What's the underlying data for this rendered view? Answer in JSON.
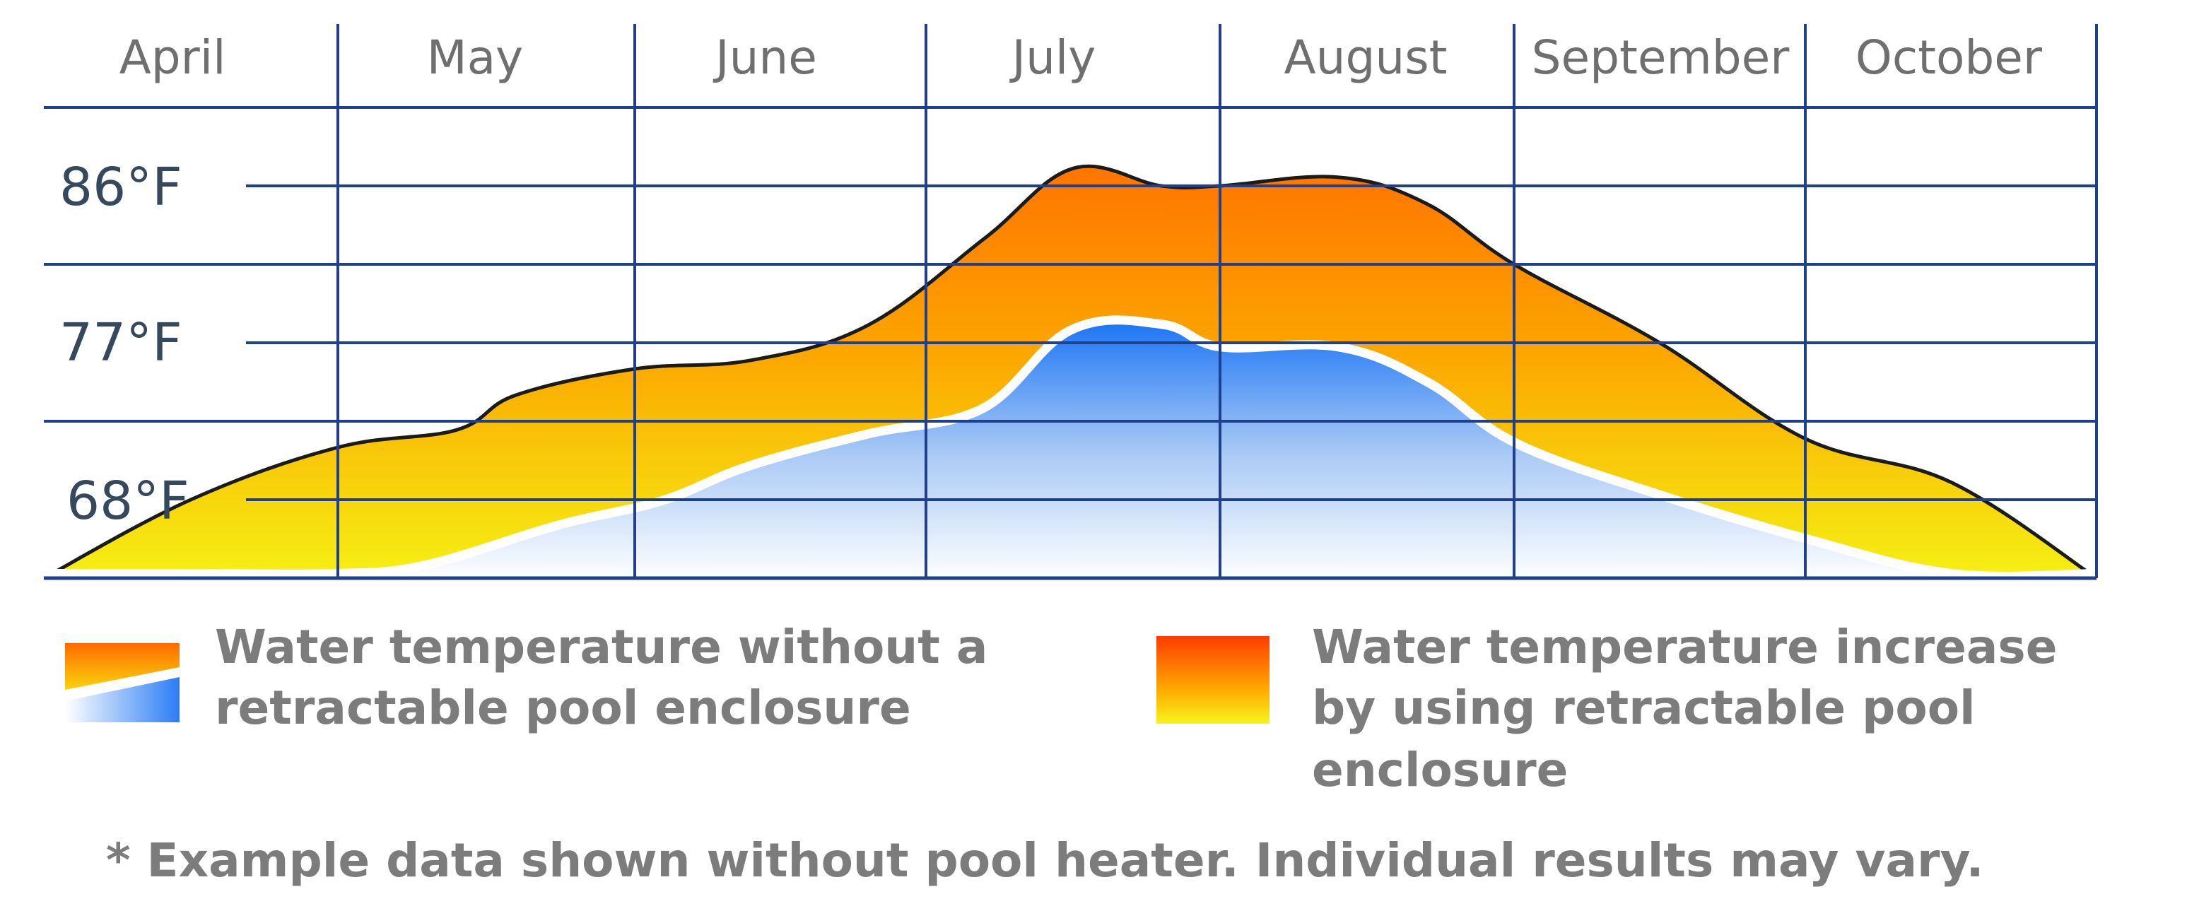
{
  "chart_data": {
    "type": "area",
    "x_categories": [
      "April",
      "May",
      "June",
      "July",
      "August",
      "September",
      "October"
    ],
    "y_ticks": [
      {
        "label": "86°F",
        "value": 86
      },
      {
        "label": "77°F",
        "value": 77
      },
      {
        "label": "68°F",
        "value": 68
      }
    ],
    "y_unit": "°F",
    "ylim": [
      63.5,
      90.5
    ],
    "grid": true,
    "series": [
      {
        "name": "Water temperature increase by using retractable pool enclosure",
        "x": [
          0.0,
          0.5,
          1.0,
          1.4,
          1.6,
          2.0,
          2.4,
          2.8,
          3.2,
          3.5,
          3.8,
          4.0,
          4.4,
          4.7,
          5.0,
          5.5,
          6.0,
          6.5,
          7.0
        ],
        "y": [
          63.5,
          68.0,
          71.0,
          72.0,
          74.0,
          75.5,
          76.0,
          78.0,
          83.0,
          87.0,
          86.0,
          86.0,
          86.5,
          85.0,
          81.5,
          77.0,
          71.5,
          69.0,
          63.5
        ],
        "colors": [
          "#f5f014",
          "#fca600",
          "#ff7400"
        ]
      },
      {
        "name": "Water temperature without a retractable pool enclosure",
        "x": [
          0.0,
          0.5,
          1.0,
          1.3,
          1.75,
          2.1,
          2.4,
          2.8,
          3.2,
          3.5,
          3.8,
          4.0,
          4.4,
          4.7,
          5.0,
          5.5,
          6.0,
          6.5,
          7.0
        ],
        "y": [
          63.5,
          63.5,
          63.5,
          64.0,
          66.3,
          67.7,
          69.7,
          71.5,
          73.0,
          77.5,
          77.8,
          76.5,
          76.5,
          74.5,
          71.0,
          68.0,
          65.5,
          63.5,
          63.5
        ],
        "colors": [
          "#ffffff",
          "#a9c9f5",
          "#1f77f5"
        ]
      }
    ],
    "legend": [
      {
        "label_line1": "Water temperature without a",
        "label_line2": "retractable pool enclosure",
        "label_line3": ""
      },
      {
        "label_line1": "Water temperature increase",
        "label_line2": "by using retractable pool",
        "label_line3": "enclosure"
      }
    ],
    "note": "* Example data shown without pool heater. Individual results may vary.",
    "grid_color": "#1f3f8f"
  }
}
